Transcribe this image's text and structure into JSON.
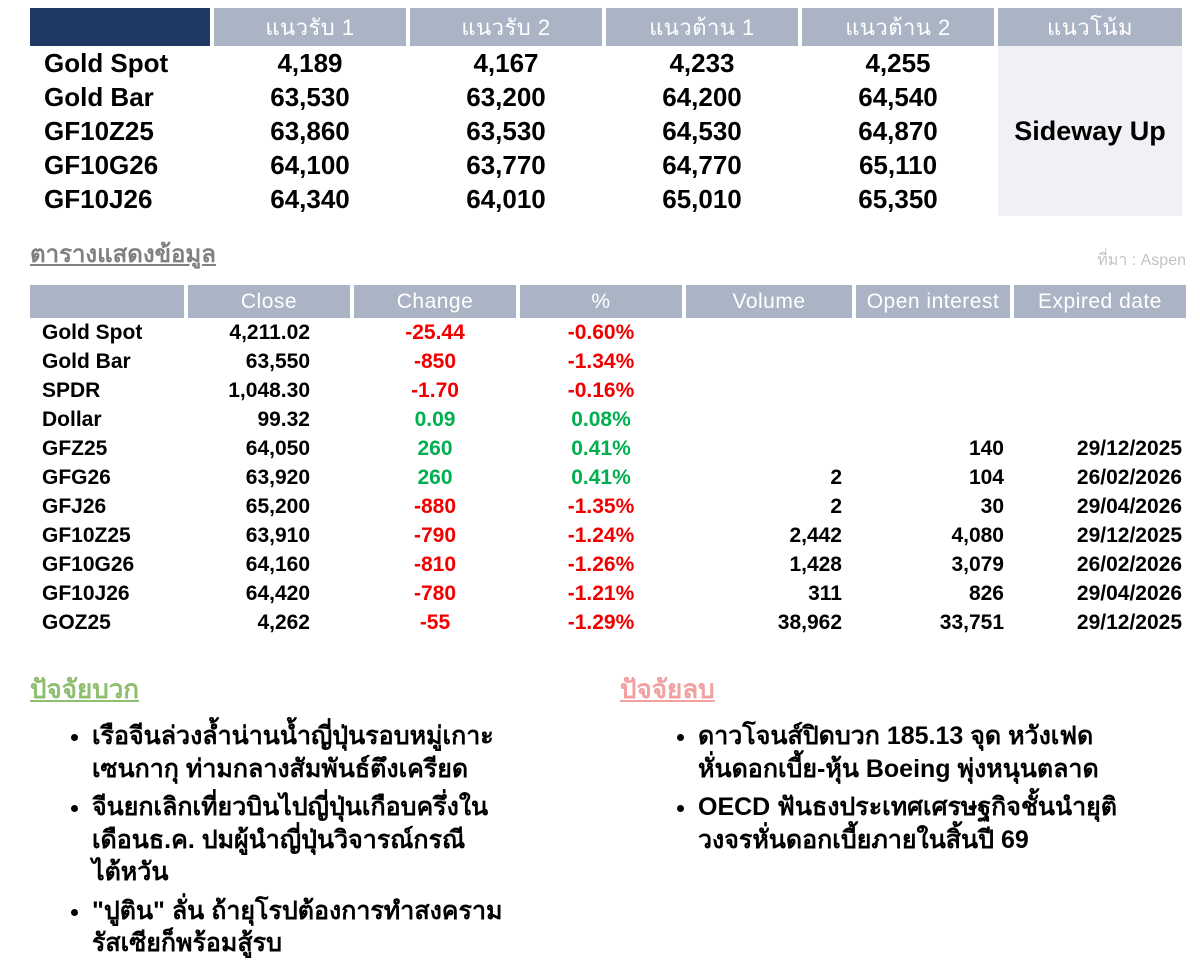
{
  "support_table": {
    "headers": [
      "",
      "แนวรับ 1",
      "แนวรับ 2",
      "แนวต้าน 1",
      "แนวต้าน 2",
      "แนวโน้ม"
    ],
    "rows": [
      {
        "name": "Gold Spot",
        "values": [
          "4,189",
          "4,167",
          "4,233",
          "4,255"
        ]
      },
      {
        "name": "Gold Bar",
        "values": [
          "63,530",
          "63,200",
          "64,200",
          "64,540"
        ]
      },
      {
        "name": "GF10Z25",
        "values": [
          "63,860",
          "63,530",
          "64,530",
          "64,870"
        ]
      },
      {
        "name": "GF10G26",
        "values": [
          "64,100",
          "63,770",
          "64,770",
          "65,110"
        ]
      },
      {
        "name": "GF10J26",
        "values": [
          "64,340",
          "64,010",
          "65,010",
          "65,350"
        ]
      }
    ],
    "trend": "Sideway Up"
  },
  "data_section": {
    "title": "ตารางแสดงข้อมูล",
    "source": "ที่มา : Aspen",
    "headers": [
      "",
      "Close",
      "Change",
      "%",
      "Volume",
      "Open interest",
      "Expired date"
    ],
    "rows": [
      {
        "name": "Gold Spot",
        "close": "4,211.02",
        "change": "-25.44",
        "percent": "-0.60%",
        "volume": "",
        "open_interest": "",
        "expired": "",
        "direction": "down"
      },
      {
        "name": "Gold Bar",
        "close": "63,550",
        "change": "-850",
        "percent": "-1.34%",
        "volume": "",
        "open_interest": "",
        "expired": "",
        "direction": "down"
      },
      {
        "name": "SPDR",
        "close": "1,048.30",
        "change": "-1.70",
        "percent": "-0.16%",
        "volume": "",
        "open_interest": "",
        "expired": "",
        "direction": "down"
      },
      {
        "name": "Dollar",
        "close": "99.32",
        "change": "0.09",
        "percent": "0.08%",
        "volume": "",
        "open_interest": "",
        "expired": "",
        "direction": "up"
      },
      {
        "name": "GFZ25",
        "close": "64,050",
        "change": "260",
        "percent": "0.41%",
        "volume": "",
        "open_interest": "140",
        "expired": "29/12/2025",
        "direction": "up"
      },
      {
        "name": "GFG26",
        "close": "63,920",
        "change": "260",
        "percent": "0.41%",
        "volume": "2",
        "open_interest": "104",
        "expired": "26/02/2026",
        "direction": "up"
      },
      {
        "name": "GFJ26",
        "close": "65,200",
        "change": "-880",
        "percent": "-1.35%",
        "volume": "2",
        "open_interest": "30",
        "expired": "29/04/2026",
        "direction": "down"
      },
      {
        "name": "GF10Z25",
        "close": "63,910",
        "change": "-790",
        "percent": "-1.24%",
        "volume": "2,442",
        "open_interest": "4,080",
        "expired": "29/12/2025",
        "direction": "down"
      },
      {
        "name": "GF10G26",
        "close": "64,160",
        "change": "-810",
        "percent": "-1.26%",
        "volume": "1,428",
        "open_interest": "3,079",
        "expired": "26/02/2026",
        "direction": "down"
      },
      {
        "name": "GF10J26",
        "close": "64,420",
        "change": "-780",
        "percent": "-1.21%",
        "volume": "311",
        "open_interest": "826",
        "expired": "29/04/2026",
        "direction": "down"
      },
      {
        "name": "GOZ25",
        "close": "4,262",
        "change": "-55",
        "percent": "-1.29%",
        "volume": "38,962",
        "open_interest": "33,751",
        "expired": "29/12/2025",
        "direction": "down"
      }
    ]
  },
  "factors": {
    "positive": {
      "title": "ปัจจัยบวก",
      "items": [
        "เรือจีนล่วงล้ำน่านน้ำญี่ปุ่นรอบหมู่เกาะเซนกากุ ท่ามกลางสัมพันธ์ตึงเครียด",
        "จีนยกเลิกเที่ยวบินไปญี่ปุ่นเกือบครึ่งในเดือนธ.ค. ปมผู้นำญี่ปุ่นวิจารณ์กรณีไต้หวัน",
        "\"ปูติน\" ลั่น ถ้ายุโรปต้องการทำสงคราม รัสเซียก็พร้อมสู้รบ"
      ]
    },
    "negative": {
      "title": "ปัจจัยลบ",
      "items": [
        "ดาวโจนส์ปิดบวก 185.13 จุด หวังเฟดหั่นดอกเบี้ย-หุ้น Boeing พุ่งหนุนตลาด",
        "OECD ฟันธงประเทศเศรษฐกิจชั้นนำยุติวงจรหั่นดอกเบี้ยภายในสิ้นปี 69"
      ]
    }
  },
  "colors": {
    "navy": "#1f3864",
    "header_gray_blue": "#aab4c5",
    "trend_bg": "#f0f1f4",
    "up_green": "#00b050",
    "down_red": "#f20000",
    "title_gray": "#808080",
    "source_gray": "#c3c3c3",
    "positive_green": "#8fbe70",
    "negative_pink": "#f2a0a0"
  }
}
